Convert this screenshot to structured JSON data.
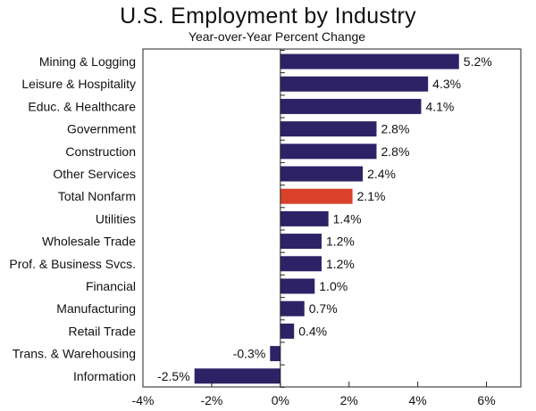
{
  "chart_data": {
    "type": "bar",
    "orientation": "horizontal",
    "title": "U.S. Employment by Industry",
    "subtitle": "Year-over-Year Percent Change",
    "categories": [
      "Mining & Logging",
      "Leisure & Hospitality",
      "Educ. & Healthcare",
      "Government",
      "Construction",
      "Other Services",
      "Total Nonfarm",
      "Utilities",
      "Wholesale Trade",
      "Prof. & Business Svcs.",
      "Financial",
      "Manufacturing",
      "Retail Trade",
      "Trans. & Warehousing",
      "Information"
    ],
    "values": [
      5.2,
      4.3,
      4.1,
      2.8,
      2.8,
      2.4,
      2.1,
      1.4,
      1.2,
      1.2,
      1.0,
      0.7,
      0.4,
      -0.3,
      -2.5
    ],
    "value_labels": [
      "5.2%",
      "4.3%",
      "4.1%",
      "2.8%",
      "2.8%",
      "2.4%",
      "2.1%",
      "1.4%",
      "1.2%",
      "1.2%",
      "1.0%",
      "0.7%",
      "0.4%",
      "-0.3%",
      "-2.5%"
    ],
    "highlight_category": "Total Nonfarm",
    "xlim": [
      -4,
      7
    ],
    "xticks": [
      -4,
      -2,
      0,
      2,
      4,
      6
    ],
    "xtick_labels": [
      "-4%",
      "-2%",
      "0%",
      "2%",
      "4%",
      "6%"
    ],
    "xlabel": "",
    "ylabel": "",
    "grid": false,
    "legend": "none",
    "colors": {
      "bar": "#2E2266",
      "highlight": "#D9412B"
    }
  }
}
